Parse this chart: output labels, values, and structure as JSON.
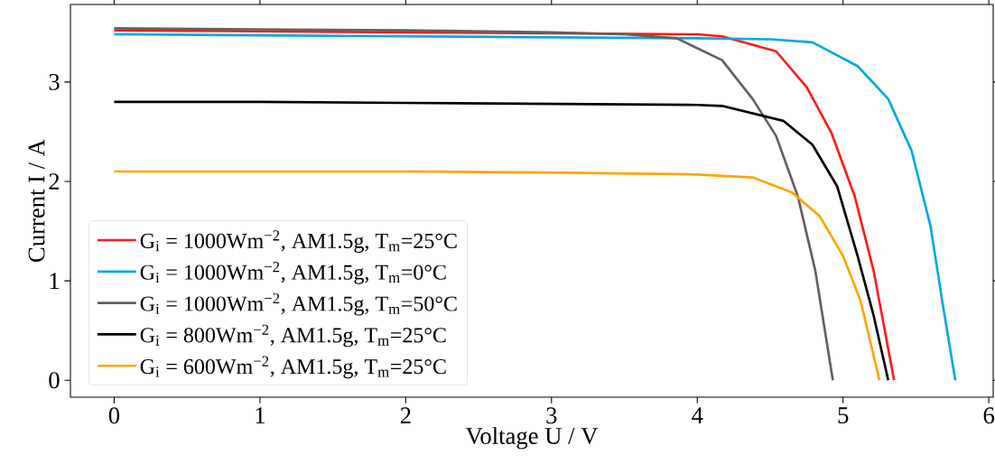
{
  "chart_data": {
    "type": "line",
    "xlabel": "Voltage U / V",
    "ylabel": "Current I / A",
    "xlim": [
      -0.3,
      6.03
    ],
    "ylim": [
      -0.17,
      3.78
    ],
    "xticks": [
      0,
      1,
      2,
      3,
      4,
      5,
      6
    ],
    "yticks": [
      0,
      1,
      2,
      3
    ],
    "legend": "bottom left",
    "series": [
      {
        "name": "G$_{i}$ = 1000Wm$^{−2}$, AM1.5g, T$_{m}$=25°C",
        "color": "#ff1a1a",
        "x": [
          0,
          1,
          2,
          3,
          4,
          4.17,
          4.54,
          4.75,
          4.92,
          5.08,
          5.21,
          5.35
        ],
        "values": [
          3.52,
          3.51,
          3.5,
          3.49,
          3.48,
          3.46,
          3.31,
          2.95,
          2.49,
          1.85,
          1.1,
          0
        ]
      },
      {
        "name": "G$_{i}$ = 1000Wm$^{−2}$, AM1.5g, T$_{m}$=0°C",
        "color": "#00a8e0",
        "x": [
          0,
          1,
          2,
          3,
          4,
          4.5,
          4.79,
          5.1,
          5.31,
          5.47,
          5.6,
          5.68,
          5.77
        ],
        "values": [
          3.48,
          3.47,
          3.46,
          3.45,
          3.44,
          3.43,
          3.4,
          3.16,
          2.83,
          2.31,
          1.55,
          0.8,
          0
        ]
      },
      {
        "name": "G$_{i}$ = 1000Wm$^{−2}$, AM1.5g, T$_{m}$=50°C",
        "color": "#606060",
        "x": [
          0,
          1,
          2,
          3,
          3.5,
          3.86,
          4.17,
          4.38,
          4.54,
          4.69,
          4.81,
          4.93
        ],
        "values": [
          3.54,
          3.53,
          3.52,
          3.5,
          3.48,
          3.44,
          3.22,
          2.83,
          2.46,
          1.85,
          1.1,
          0
        ]
      },
      {
        "name": "G$_{i}$ = 800Wm$^{−2}$, AM1.5g, T$_{m}$=25°C",
        "color": "#000000",
        "x": [
          0,
          1,
          2,
          3,
          4,
          4.17,
          4.59,
          4.79,
          4.96,
          5.1,
          5.21,
          5.31
        ],
        "values": [
          2.8,
          2.8,
          2.79,
          2.78,
          2.77,
          2.76,
          2.61,
          2.37,
          1.95,
          1.25,
          0.65,
          0
        ]
      },
      {
        "name": "G$_{i}$ = 600Wm$^{−2}$, AM1.5g, T$_{m}$=25°C",
        "color": "#ffa500",
        "x": [
          0,
          1,
          2,
          3,
          4,
          4.38,
          4.65,
          4.84,
          5.0,
          5.12,
          5.25
        ],
        "values": [
          2.1,
          2.1,
          2.1,
          2.09,
          2.07,
          2.04,
          1.89,
          1.65,
          1.25,
          0.8,
          0
        ]
      }
    ]
  }
}
